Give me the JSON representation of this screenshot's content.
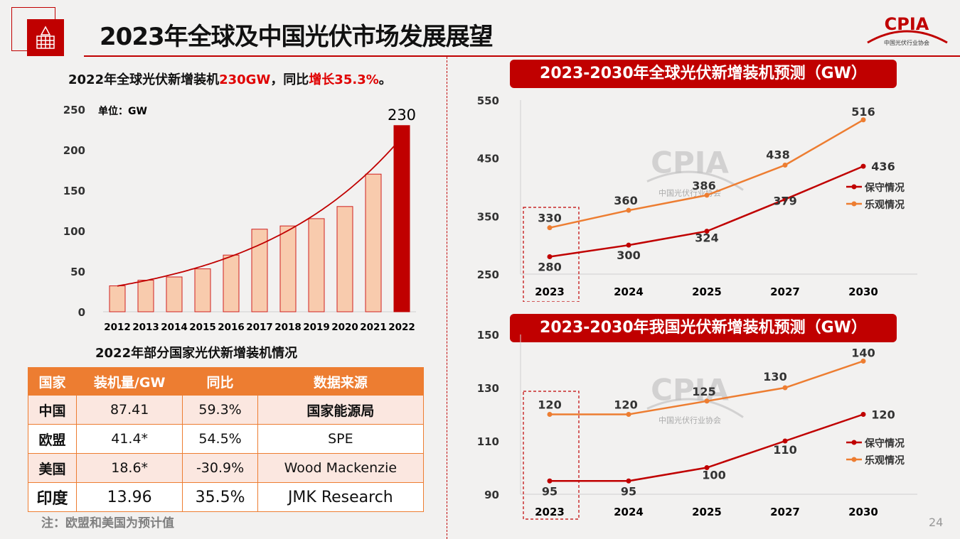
{
  "header": {
    "title": "2023年全球及中国光伏市场发展展望",
    "logo_text": "CPIA",
    "logo_subtext": "中国光伏行业协会"
  },
  "left": {
    "subhead_prefix": "2022年全球光伏新增装机",
    "subhead_highlight1": "230GW",
    "subhead_mid": "，同比",
    "subhead_highlight2": "增长35.3%",
    "subhead_suffix": "。"
  },
  "table": {
    "title": "2022年部分国家光伏新增装机情况",
    "headers": [
      "国家",
      "装机量/GW",
      "同比",
      "数据来源"
    ],
    "rows": [
      [
        "中国",
        "87.41",
        "59.3%",
        "国家能源局"
      ],
      [
        "欧盟",
        "41.4*",
        "54.5%",
        "SPE"
      ],
      [
        "美国",
        "18.6*",
        "-30.9%",
        "Wood Mackenzie"
      ],
      [
        "印度",
        "13.96",
        "35.5%",
        "JMK Research"
      ]
    ],
    "note": "注：欧盟和美国为预计值"
  },
  "page_number": "24",
  "colors": {
    "accent": "#c00000",
    "bar_light": "#f8cbad",
    "orange": "#ed7d31",
    "table_row": "#fbe7e0"
  },
  "chart_data": [
    {
      "type": "bar",
      "unit_label": "单位：GW",
      "categories": [
        "2012",
        "2013",
        "2014",
        "2015",
        "2016",
        "2017",
        "2018",
        "2019",
        "2020",
        "2021",
        "2022"
      ],
      "values": [
        32,
        39,
        43,
        53,
        70,
        102,
        106,
        115,
        130,
        170,
        230
      ],
      "data_labels": {
        "2022": "230"
      },
      "highlight_category": "2022",
      "trendline": "exponential",
      "ylim": [
        0,
        250
      ],
      "yticks": [
        0,
        50,
        100,
        150,
        200,
        250
      ],
      "grid": false
    },
    {
      "type": "line",
      "title": "2023-2030年全球光伏新增装机预测（GW）",
      "categories": [
        "2023",
        "2024",
        "2025",
        "2027",
        "2030"
      ],
      "series": [
        {
          "name": "保守情况",
          "values": [
            280,
            300,
            324,
            379,
            436
          ],
          "color": "#c00000"
        },
        {
          "name": "乐观情况",
          "values": [
            330,
            360,
            386,
            438,
            516
          ],
          "color": "#ed7d31"
        }
      ],
      "ylim": [
        250,
        550
      ],
      "yticks": [
        250,
        350,
        450,
        550
      ],
      "legend": "right",
      "highlight_category": "2023",
      "watermark": "CPIA 中国光伏行业协会",
      "grid": false
    },
    {
      "type": "line",
      "title": "2023-2030年我国光伏新增装机预测（GW）",
      "categories": [
        "2023",
        "2024",
        "2025",
        "2027",
        "2030"
      ],
      "series": [
        {
          "name": "保守情况",
          "values": [
            95,
            95,
            100,
            110,
            120
          ],
          "color": "#c00000"
        },
        {
          "name": "乐观情况",
          "values": [
            120,
            120,
            125,
            130,
            140
          ],
          "color": "#ed7d31"
        }
      ],
      "ylim": [
        90,
        150
      ],
      "yticks": [
        90,
        110,
        130,
        150
      ],
      "legend": "right",
      "highlight_category": "2023",
      "watermark": "CPIA 中国光伏行业协会",
      "grid": false
    }
  ]
}
